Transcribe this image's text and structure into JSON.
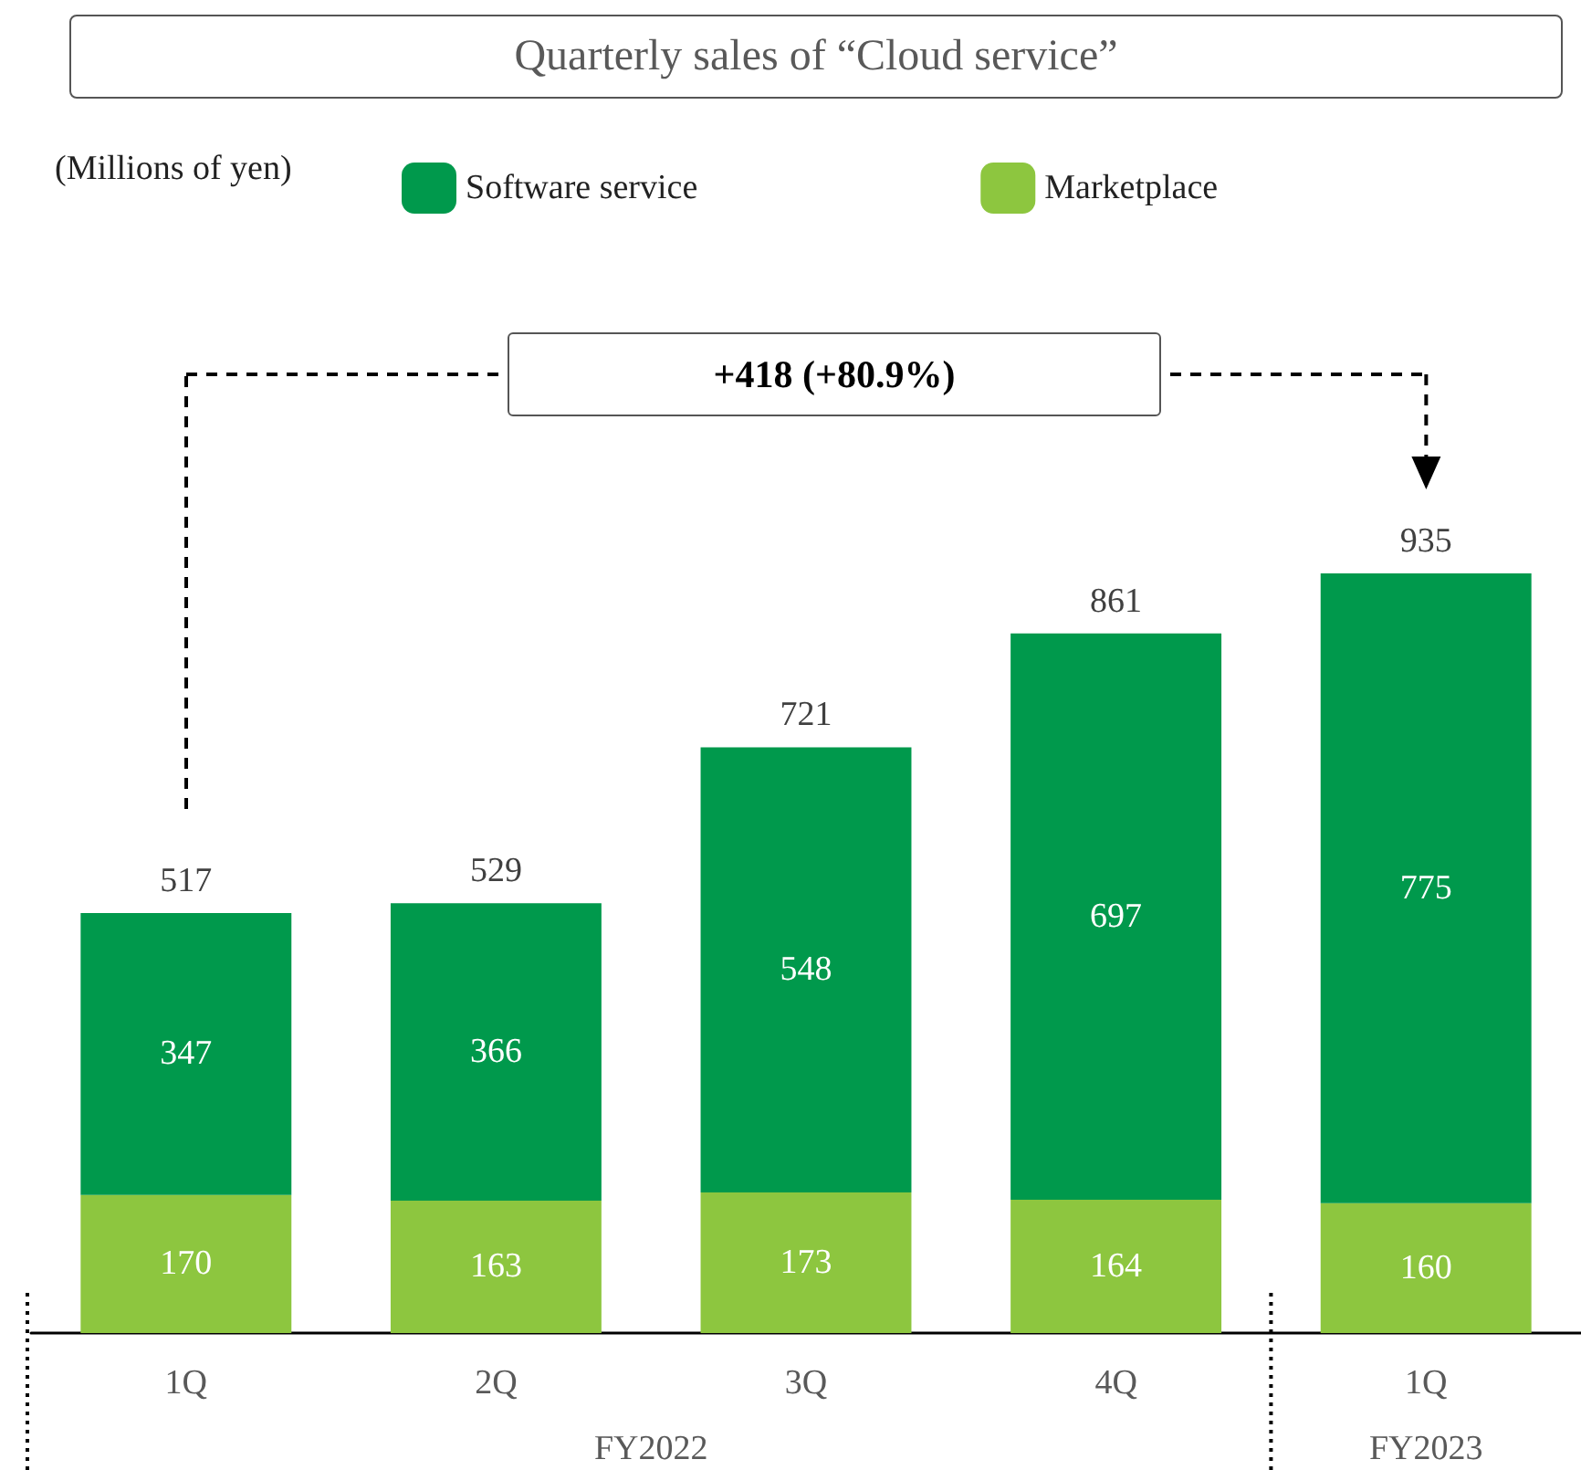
{
  "chart_data": {
    "type": "bar",
    "title": "Quarterly sales of “Cloud service”",
    "categories": [
      "1Q",
      "2Q",
      "3Q",
      "4Q",
      "1Q"
    ],
    "series": [
      {
        "name": "Marketplace",
        "color": "#8dc63f",
        "values": [
          170,
          163,
          173,
          164,
          160
        ]
      },
      {
        "name": "Software service",
        "color": "#00994c",
        "values": [
          347,
          366,
          548,
          697,
          775
        ]
      }
    ],
    "stacked": true,
    "data_labels": true,
    "totals": [
      "517",
      "529",
      "721",
      "861",
      "935"
    ],
    "legend": "top left",
    "annotations": [
      "+418 (+80.9%)",
      "FY2022",
      "FY2023",
      "(Millions of yen)"
    ]
  }
}
